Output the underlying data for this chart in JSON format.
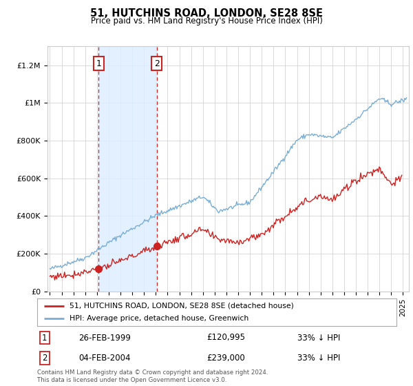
{
  "title": "51, HUTCHINS ROAD, LONDON, SE28 8SE",
  "subtitle": "Price paid vs. HM Land Registry's House Price Index (HPI)",
  "ylabel_ticks": [
    "£0",
    "£200K",
    "£400K",
    "£600K",
    "£800K",
    "£1M",
    "£1.2M"
  ],
  "ytick_values": [
    0,
    200000,
    400000,
    600000,
    800000,
    1000000,
    1200000
  ],
  "ylim": [
    0,
    1300000
  ],
  "xlim_start": 1994.8,
  "xlim_end": 2025.5,
  "red_line_color": "#cc2222",
  "blue_line_color": "#7aaed6",
  "shade_color": "#ddeeff",
  "annotation_box_color": "#cc2222",
  "purchase1_year": 1999.15,
  "purchase1_price": 120995,
  "purchase1_label": "1",
  "purchase2_year": 2004.09,
  "purchase2_price": 239000,
  "purchase2_label": "2",
  "legend_line1": "51, HUTCHINS ROAD, LONDON, SE28 8SE (detached house)",
  "legend_line2": "HPI: Average price, detached house, Greenwich",
  "table_row1": [
    "1",
    "26-FEB-1999",
    "£120,995",
    "33% ↓ HPI"
  ],
  "table_row2": [
    "2",
    "04-FEB-2004",
    "£239,000",
    "33% ↓ HPI"
  ],
  "footer": "Contains HM Land Registry data © Crown copyright and database right 2024.\nThis data is licensed under the Open Government Licence v3.0.",
  "background_color": "#ffffff",
  "grid_color": "#cccccc"
}
